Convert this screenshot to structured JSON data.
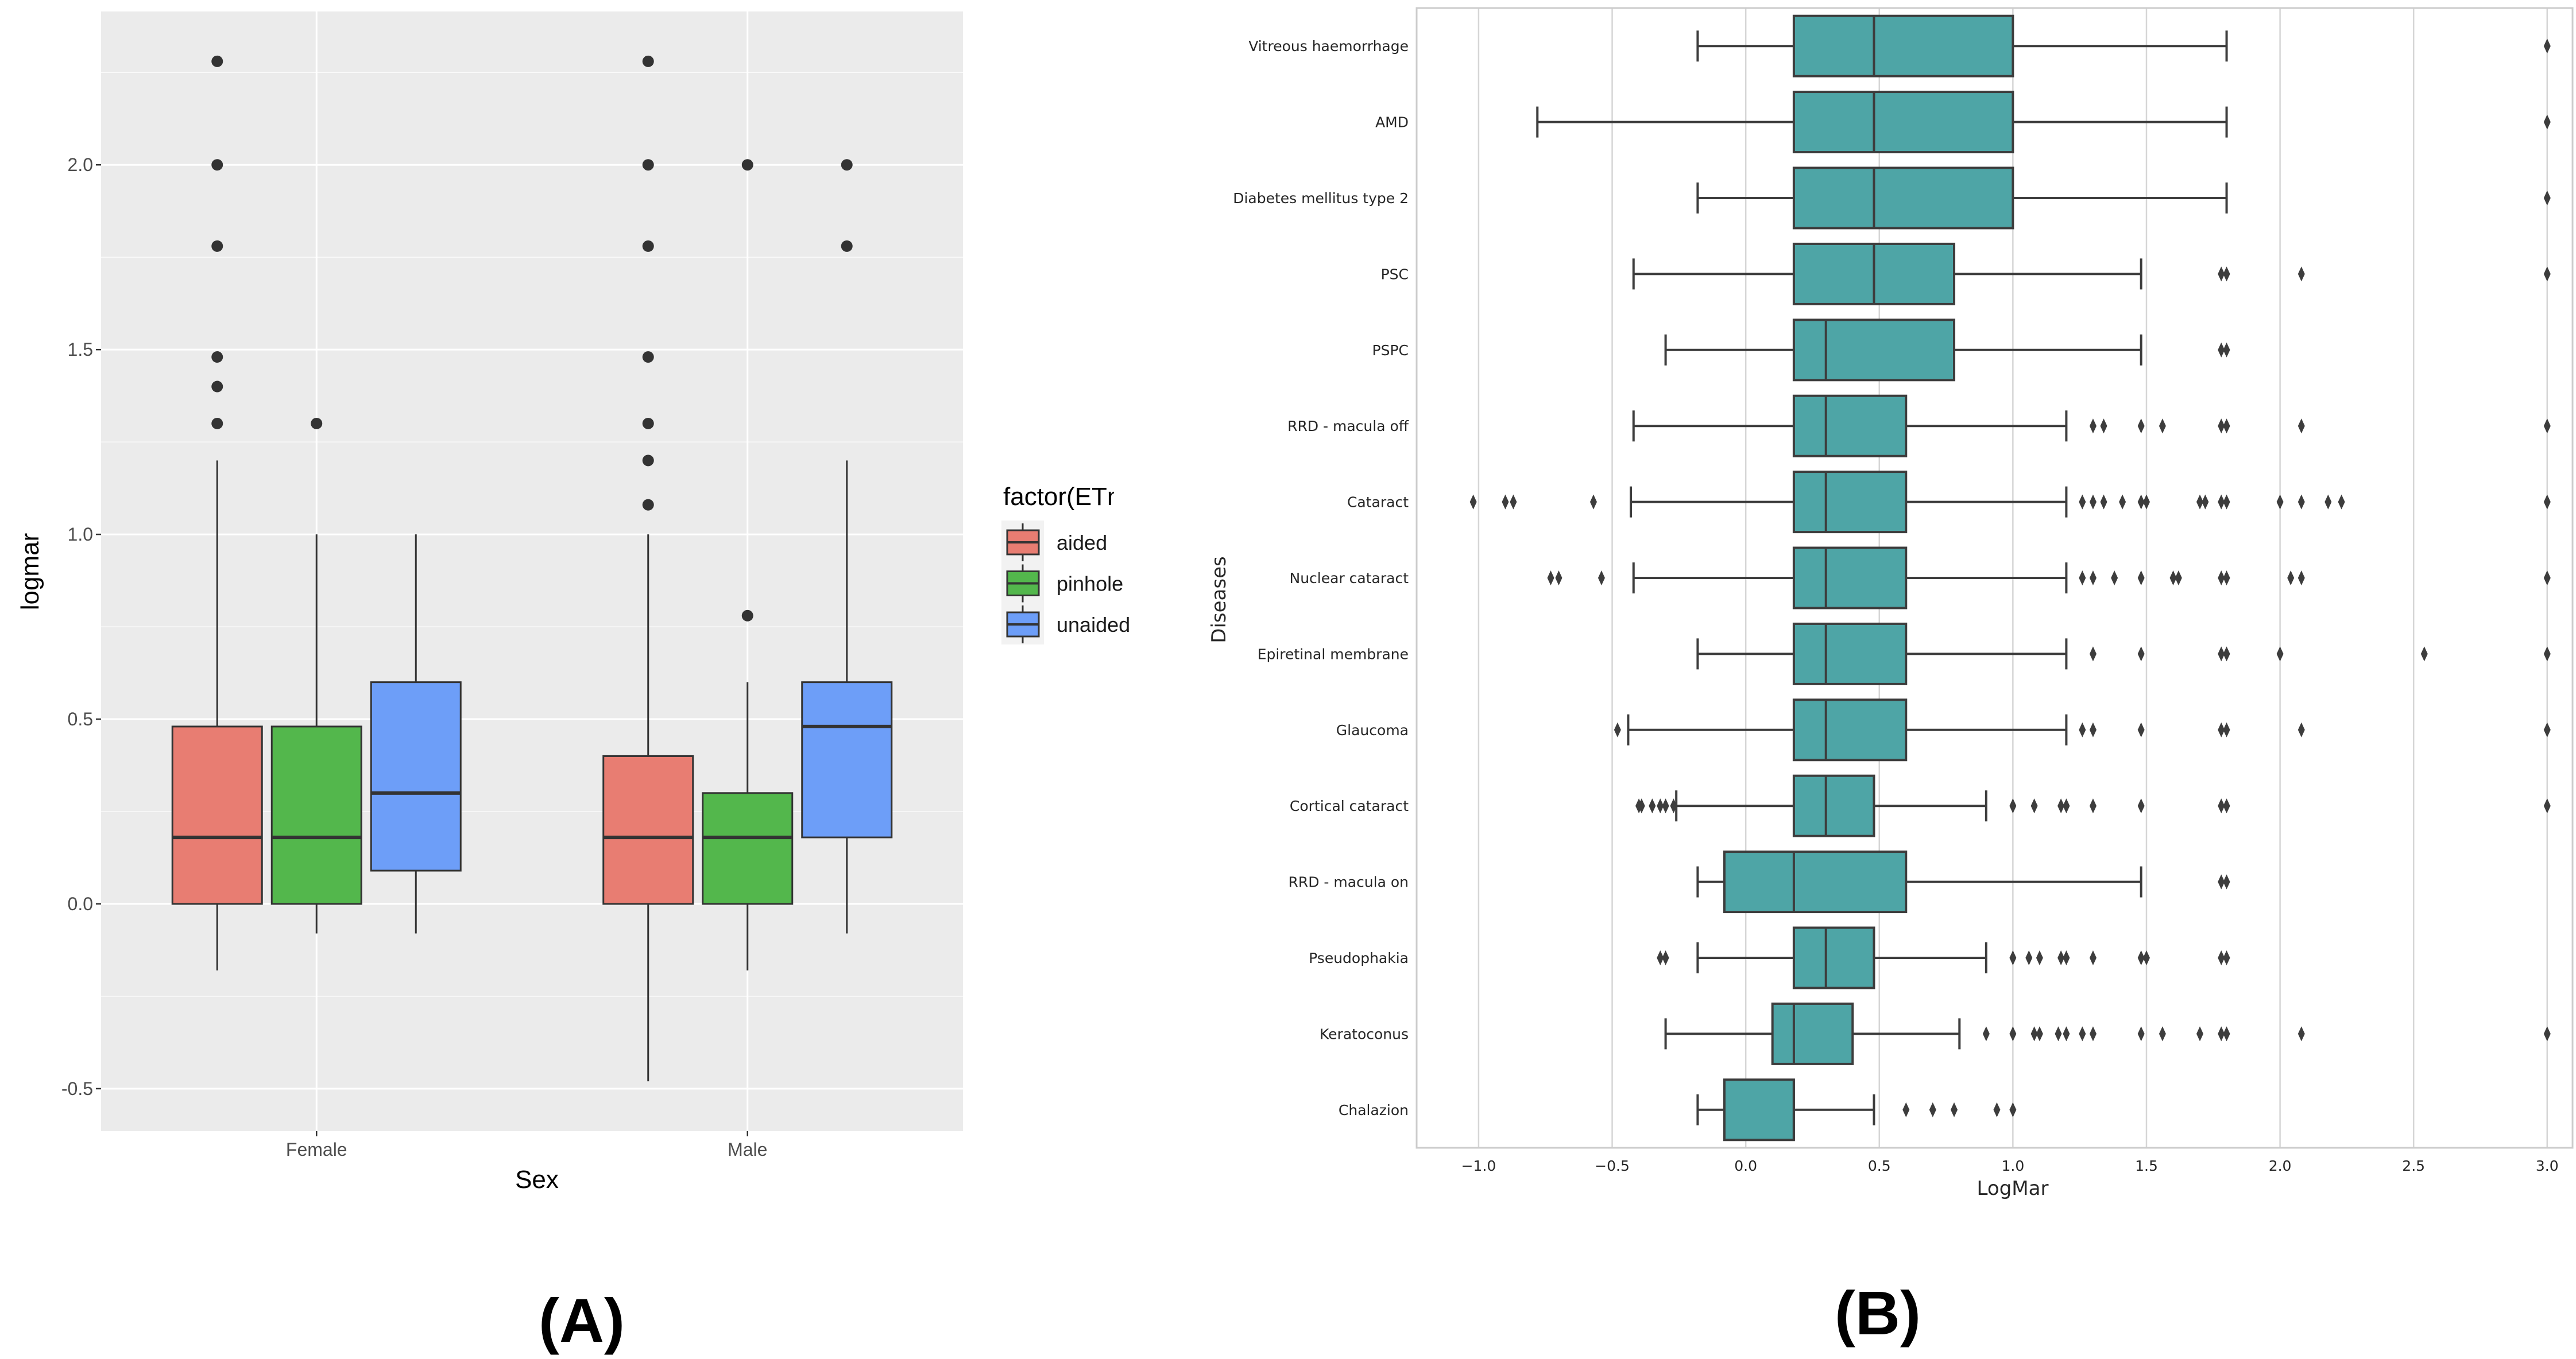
{
  "chart_data": [
    {
      "type": "box",
      "panel_label": "(A)",
      "xlabel": "Sex",
      "ylabel": "logmar",
      "ylim": [
        -0.615,
        2.415
      ],
      "yticks": [
        -0.5,
        0.0,
        0.5,
        1.0,
        1.5,
        2.0
      ],
      "ytick_labels": [
        "-0.5",
        "0.0",
        "0.5",
        "1.0",
        "1.5",
        "2.0"
      ],
      "grid": true,
      "categories": [
        "Female",
        "Male"
      ],
      "legend": {
        "title": "factor(ETnorm)",
        "placement": "right"
      },
      "series": [
        {
          "name": "aided",
          "color": "#e87d72",
          "boxes": [
            {
              "category": "Female",
              "whisker_low": -0.18,
              "q1": 0.0,
              "median": 0.18,
              "q3": 0.48,
              "whisker_high": 1.2,
              "outliers": [
                1.3,
                1.4,
                1.48,
                1.78,
                2.0,
                2.28
              ]
            },
            {
              "category": "Male",
              "whisker_low": -0.48,
              "q1": 0.0,
              "median": 0.18,
              "q3": 0.4,
              "whisker_high": 1.0,
              "outliers": [
                1.08,
                1.2,
                1.3,
                1.48,
                1.78,
                2.0,
                2.28
              ]
            }
          ]
        },
        {
          "name": "pinhole",
          "color": "#53b74c",
          "boxes": [
            {
              "category": "Female",
              "whisker_low": -0.08,
              "q1": 0.0,
              "median": 0.18,
              "q3": 0.48,
              "whisker_high": 1.0,
              "outliers": [
                1.3
              ]
            },
            {
              "category": "Male",
              "whisker_low": -0.18,
              "q1": 0.0,
              "median": 0.18,
              "q3": 0.3,
              "whisker_high": 0.6,
              "outliers": [
                0.78,
                2.0
              ]
            }
          ]
        },
        {
          "name": "unaided",
          "color": "#6d9ef8",
          "boxes": [
            {
              "category": "Female",
              "whisker_low": -0.08,
              "q1": 0.09,
              "median": 0.3,
              "q3": 0.6,
              "whisker_high": 1.0,
              "outliers": []
            },
            {
              "category": "Male",
              "whisker_low": -0.08,
              "q1": 0.18,
              "median": 0.48,
              "q3": 0.6,
              "whisker_high": 1.2,
              "outliers": [
                1.78,
                2.0
              ]
            }
          ]
        }
      ]
    },
    {
      "type": "box",
      "orientation": "horizontal",
      "panel_label": "(B)",
      "xlabel": "LogMar",
      "ylabel": "Diseases",
      "xlim": [
        -1.232,
        3.095
      ],
      "xticks": [
        -1.0,
        -0.5,
        0.0,
        0.5,
        1.0,
        1.5,
        2.0,
        2.5,
        3.0
      ],
      "xtick_labels": [
        "−1.0",
        "−0.5",
        "0.0",
        "0.5",
        "1.0",
        "1.5",
        "2.0",
        "2.5",
        "3.0"
      ],
      "grid": true,
      "color": "#4ea5a6",
      "boxes": [
        {
          "category": "Vitreous haemorrhage",
          "whisker_low": -0.18,
          "q1": 0.18,
          "median": 0.48,
          "q3": 1.0,
          "whisker_high": 1.8,
          "outliers": [
            3.0
          ]
        },
        {
          "category": "AMD",
          "whisker_low": -0.78,
          "q1": 0.18,
          "median": 0.48,
          "q3": 1.0,
          "whisker_high": 1.8,
          "outliers": [
            3.0
          ]
        },
        {
          "category": "Diabetes mellitus type 2",
          "whisker_low": -0.18,
          "q1": 0.18,
          "median": 0.48,
          "q3": 1.0,
          "whisker_high": 1.8,
          "outliers": [
            3.0
          ]
        },
        {
          "category": "PSC",
          "whisker_low": -0.42,
          "q1": 0.18,
          "median": 0.48,
          "q3": 0.78,
          "whisker_high": 1.48,
          "outliers": [
            1.78,
            1.8,
            2.08,
            3.0
          ]
        },
        {
          "category": "PSPC",
          "whisker_low": -0.3,
          "q1": 0.18,
          "median": 0.3,
          "q3": 0.78,
          "whisker_high": 1.48,
          "outliers": [
            1.78,
            1.8
          ]
        },
        {
          "category": "RRD - macula off",
          "whisker_low": -0.42,
          "q1": 0.18,
          "median": 0.3,
          "q3": 0.6,
          "whisker_high": 1.2,
          "outliers": [
            1.3,
            1.34,
            1.48,
            1.56,
            1.78,
            1.8,
            2.08,
            3.0
          ]
        },
        {
          "category": "Cataract",
          "whisker_low": -0.43,
          "q1": 0.18,
          "median": 0.3,
          "q3": 0.6,
          "whisker_high": 1.2,
          "outliers": [
            -1.02,
            -0.9,
            -0.87,
            -0.57,
            1.26,
            1.3,
            1.34,
            1.41,
            1.48,
            1.5,
            1.7,
            1.72,
            1.78,
            1.8,
            2.0,
            2.08,
            2.18,
            2.23,
            3.0
          ]
        },
        {
          "category": "Nuclear cataract",
          "whisker_low": -0.42,
          "q1": 0.18,
          "median": 0.3,
          "q3": 0.6,
          "whisker_high": 1.2,
          "outliers": [
            -0.73,
            -0.7,
            -0.54,
            1.26,
            1.3,
            1.38,
            1.48,
            1.6,
            1.62,
            1.78,
            1.8,
            2.04,
            2.08,
            3.0
          ]
        },
        {
          "category": "Epiretinal membrane",
          "whisker_low": -0.18,
          "q1": 0.18,
          "median": 0.3,
          "q3": 0.6,
          "whisker_high": 1.2,
          "outliers": [
            1.3,
            1.48,
            1.78,
            1.8,
            2.0,
            2.54,
            3.0
          ]
        },
        {
          "category": "Glaucoma",
          "whisker_low": -0.44,
          "q1": 0.18,
          "median": 0.3,
          "q3": 0.6,
          "whisker_high": 1.2,
          "outliers": [
            -0.48,
            1.26,
            1.3,
            1.48,
            1.78,
            1.8,
            2.08,
            3.0
          ]
        },
        {
          "category": "Cortical cataract",
          "whisker_low": -0.26,
          "q1": 0.18,
          "median": 0.3,
          "q3": 0.48,
          "whisker_high": 0.9,
          "outliers": [
            -0.4,
            -0.39,
            -0.35,
            -0.32,
            -0.3,
            -0.27,
            1.0,
            1.08,
            1.18,
            1.2,
            1.3,
            1.48,
            1.78,
            1.8,
            3.0
          ]
        },
        {
          "category": "RRD - macula on",
          "whisker_low": -0.18,
          "q1": -0.08,
          "median": 0.18,
          "q3": 0.6,
          "whisker_high": 1.48,
          "outliers": [
            1.78,
            1.8
          ]
        },
        {
          "category": "Pseudophakia",
          "whisker_low": -0.18,
          "q1": 0.18,
          "median": 0.3,
          "q3": 0.48,
          "whisker_high": 0.9,
          "outliers": [
            -0.32,
            -0.3,
            1.0,
            1.06,
            1.1,
            1.18,
            1.2,
            1.3,
            1.48,
            1.5,
            1.78,
            1.8
          ]
        },
        {
          "category": "Keratoconus",
          "whisker_low": -0.3,
          "q1": 0.1,
          "median": 0.18,
          "q3": 0.4,
          "whisker_high": 0.8,
          "outliers": [
            0.9,
            1.0,
            1.08,
            1.1,
            1.17,
            1.2,
            1.26,
            1.3,
            1.48,
            1.56,
            1.7,
            1.78,
            1.8,
            2.08,
            3.0
          ]
        },
        {
          "category": "Chalazion",
          "whisker_low": -0.18,
          "q1": -0.08,
          "median": 0.18,
          "q3": 0.18,
          "whisker_high": 0.48,
          "outliers": [
            0.6,
            0.7,
            0.78,
            0.94,
            1.0
          ]
        }
      ]
    }
  ]
}
